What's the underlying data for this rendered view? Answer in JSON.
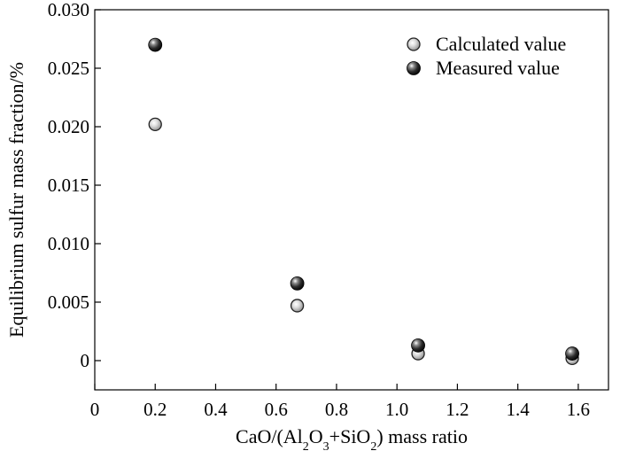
{
  "chart_data": {
    "type": "scatter",
    "title": "",
    "xlabel": {
      "parts": [
        {
          "t": "CaO/(Al"
        },
        {
          "t": "2",
          "sub": true
        },
        {
          "t": "O"
        },
        {
          "t": "3",
          "sub": true
        },
        {
          "t": "+SiO"
        },
        {
          "t": "2",
          "sub": true
        },
        {
          "t": ") mass ratio"
        }
      ]
    },
    "ylabel": "Equilibrium sulfur mass fraction/%",
    "xlim": [
      0,
      1.7
    ],
    "ylim": [
      -0.0025,
      0.03
    ],
    "x_ticks": [
      0,
      0.2,
      0.4,
      0.6,
      0.8,
      1.0,
      1.2,
      1.4,
      1.6
    ],
    "x_tick_labels": [
      "0",
      "0.2",
      "0.4",
      "0.6",
      "0.8",
      "1.0",
      "1.2",
      "1.4",
      "1.6"
    ],
    "y_ticks": [
      0,
      0.005,
      0.01,
      0.015,
      0.02,
      0.025,
      0.03
    ],
    "y_tick_labels": [
      "0",
      "0.005",
      "0.010",
      "0.015",
      "0.020",
      "0.025",
      "0.030"
    ],
    "grid": false,
    "legend_position": "top-right",
    "series": [
      {
        "name": "Calculated value",
        "marker": "hollow-circle",
        "color": "#555555",
        "x": [
          0.2,
          0.67,
          1.07,
          1.58
        ],
        "y": [
          0.0202,
          0.0047,
          0.0006,
          0.0002
        ]
      },
      {
        "name": "Measured value",
        "marker": "filled-sphere",
        "color": "#111111",
        "x": [
          0.2,
          0.67,
          1.07,
          1.58
        ],
        "y": [
          0.027,
          0.0066,
          0.0013,
          0.0006
        ]
      }
    ]
  }
}
